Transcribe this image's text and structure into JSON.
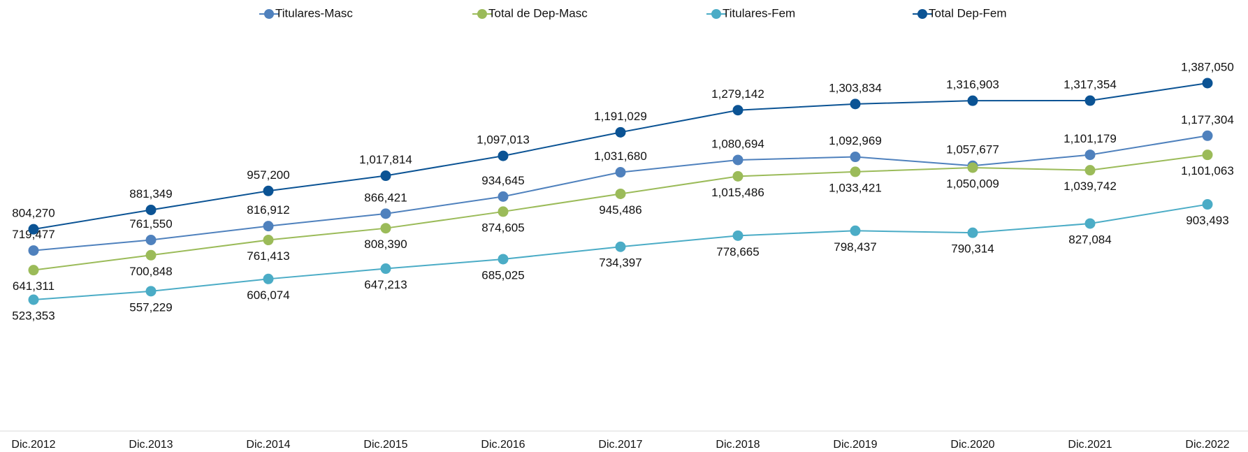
{
  "chart_data": {
    "type": "line",
    "categories": [
      "Dic.2012",
      "Dic.2013",
      "Dic.2014",
      "Dic.2015",
      "Dic.2016",
      "Dic.2017",
      "Dic.2018",
      "Dic.2019",
      "Dic.2020",
      "Dic.2021",
      "Dic.2022"
    ],
    "series": [
      {
        "name": "Titulares-Masc",
        "color": "#4f81bd",
        "values": [
          719477,
          761550,
          816912,
          866421,
          934645,
          1031680,
          1080694,
          1092969,
          1057677,
          1101179,
          1177304
        ],
        "value_labels": [
          "719,477",
          "761,550",
          "816,912",
          "866,421",
          "934,645",
          "1,031,680",
          "1,080,694",
          "1,092,969",
          "1,057,677",
          "1,101,179",
          "1,177,304"
        ]
      },
      {
        "name": "Total de Dep-Masc",
        "color": "#9bbb59",
        "values": [
          641311,
          700848,
          761413,
          808390,
          874605,
          945486,
          1015486,
          1033421,
          1050009,
          1039742,
          1101063
        ],
        "value_labels": [
          "641,311",
          "700,848",
          "761,413",
          "808,390",
          "874,605",
          "945,486",
          "1,015,486",
          "1,033,421",
          "1,050,009",
          "1,039,742",
          "1,101,063"
        ]
      },
      {
        "name": "Titulares-Fem",
        "color": "#4bacc6",
        "values": [
          523353,
          557229,
          606074,
          647213,
          685025,
          734397,
          778665,
          798437,
          790314,
          827084,
          903493
        ],
        "value_labels": [
          "523,353",
          "557,229",
          "606,074",
          "647,213",
          "685,025",
          "734,397",
          "778,665",
          "798,437",
          "790,314",
          "827,084",
          "903,493"
        ]
      },
      {
        "name": "Total Dep-Fem",
        "color": "#0b5394",
        "values": [
          804270,
          881349,
          957200,
          1017814,
          1097013,
          1191029,
          1279142,
          1303834,
          1316903,
          1317354,
          1387050
        ],
        "value_labels": [
          "804,270",
          "881,349",
          "957,200",
          "1,017,814",
          "1,097,013",
          "1,191,029",
          "1,279,142",
          "1,303,834",
          "1,316,903",
          "1,317,354",
          "1,387,050"
        ]
      }
    ],
    "legend": "top"
  }
}
